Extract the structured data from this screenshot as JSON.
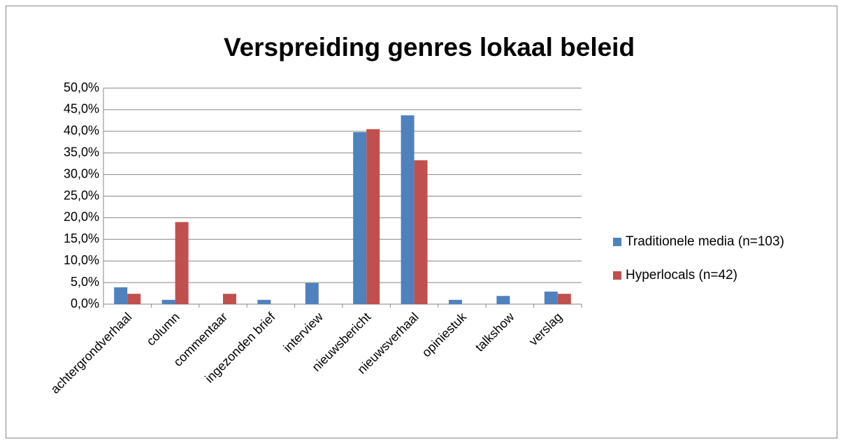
{
  "chart_data": {
    "type": "bar",
    "title": "Verspreiding genres lokaal beleid",
    "categories": [
      "achtergrondverhaal",
      "column",
      "commentaar",
      "ingezonden brief",
      "interview",
      "nieuwsbericht",
      "nieuwsverhaal",
      "opiniestuk",
      "talkshow",
      "verslag"
    ],
    "series": [
      {
        "name": "Traditionele media (n=103)",
        "color": "#4f81bd",
        "values": [
          3.9,
          1.0,
          0,
          1.0,
          4.9,
          39.8,
          43.7,
          1.0,
          1.9,
          2.9
        ]
      },
      {
        "name": "Hyperlocals (n=42)",
        "color": "#c0504d",
        "values": [
          2.4,
          19.0,
          2.4,
          0,
          0,
          40.5,
          33.3,
          0,
          0,
          2.4
        ]
      }
    ],
    "ylim": [
      0,
      50
    ],
    "yticks": [
      {
        "value": 0,
        "label": "0,0%"
      },
      {
        "value": 5,
        "label": "5,0%"
      },
      {
        "value": 10,
        "label": "10,0%"
      },
      {
        "value": 15,
        "label": "15,0%"
      },
      {
        "value": 20,
        "label": "20,0%"
      },
      {
        "value": 25,
        "label": "25,0%"
      },
      {
        "value": 30,
        "label": "30,0%"
      },
      {
        "value": 35,
        "label": "35,0%"
      },
      {
        "value": 40,
        "label": "40,0%"
      },
      {
        "value": 45,
        "label": "45,0%"
      },
      {
        "value": 50,
        "label": "50,0%"
      }
    ],
    "grid": true,
    "legend": "right"
  }
}
